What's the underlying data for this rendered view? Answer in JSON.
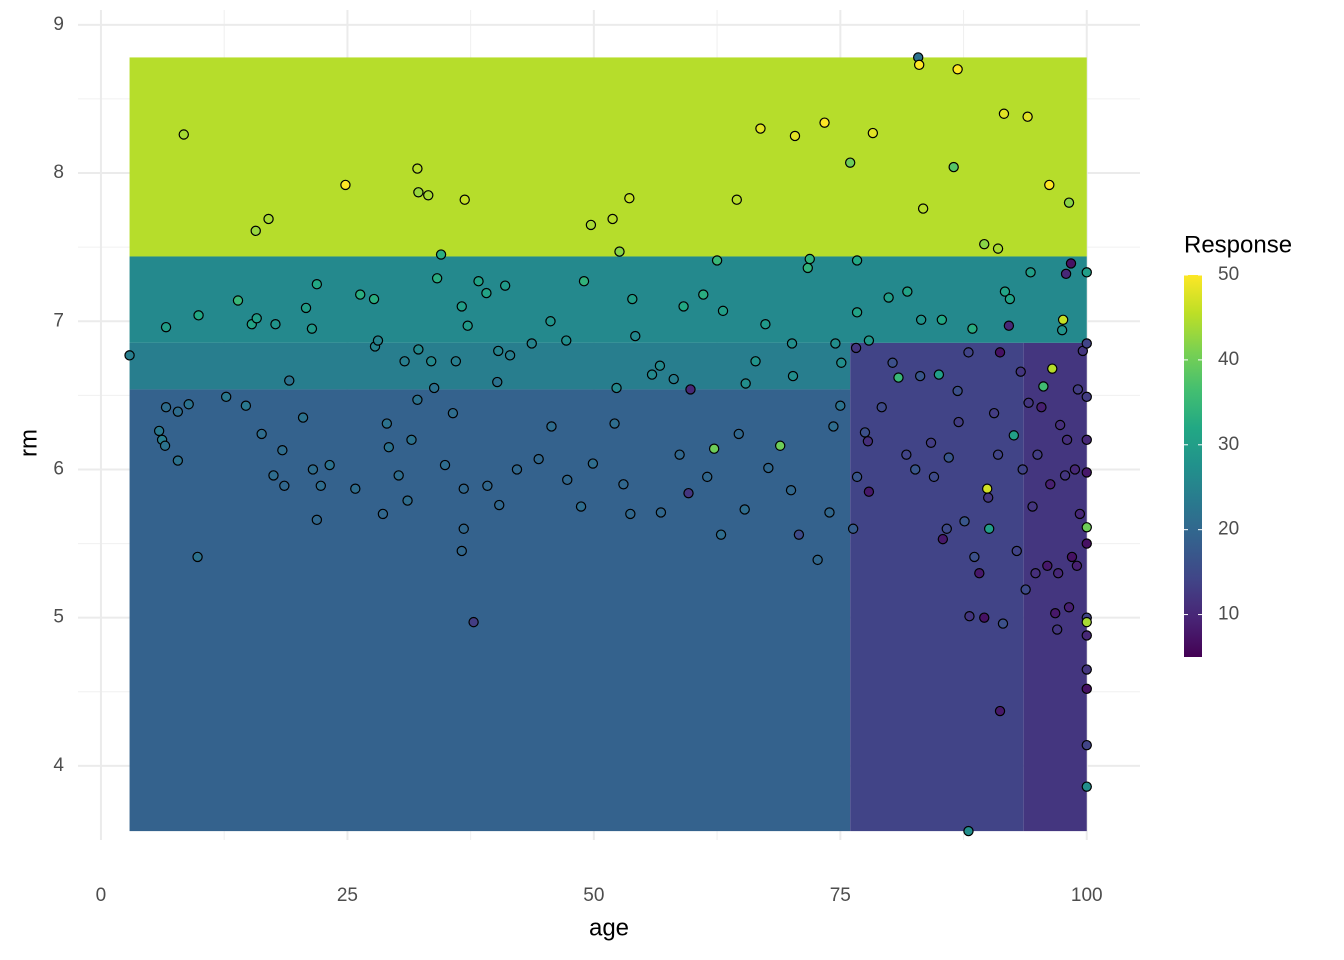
{
  "chart_data": {
    "type": "scatter",
    "x_label": "age",
    "y_label": "rm",
    "legend_title": "Response",
    "xlim": [
      -2.33,
      105.4
    ],
    "ylim": [
      3.5,
      9.1
    ],
    "xticks": [
      0,
      25,
      50,
      75,
      100
    ],
    "yticks": [
      4,
      5,
      6,
      7,
      8,
      9
    ],
    "grid": true,
    "colormap": "viridis",
    "clim": [
      5,
      50
    ],
    "cticks": [
      10,
      20,
      30,
      40,
      50
    ],
    "regions": [
      {
        "xlim": [
          2.9,
          100
        ],
        "ylim": [
          7.437,
          8.78
        ],
        "value": 45
      },
      {
        "xlim": [
          2.9,
          100
        ],
        "ylim": [
          6.854,
          7.437
        ],
        "value": 26
      },
      {
        "xlim": [
          2.9,
          76
        ],
        "ylim": [
          6.54,
          6.854
        ],
        "value": 24
      },
      {
        "xlim": [
          2.9,
          76
        ],
        "ylim": [
          3.56,
          6.54
        ],
        "value": 19
      },
      {
        "xlim": [
          76,
          93.6
        ],
        "ylim": [
          3.56,
          6.854
        ],
        "value": 14
      },
      {
        "xlim": [
          93.6,
          100
        ],
        "ylim": [
          3.56,
          6.854
        ],
        "value": 12
      }
    ],
    "x": [
      8.4,
      24.8,
      32.1,
      32.2,
      33.2,
      36.9,
      15.7,
      17,
      49.7,
      52.6,
      51.9,
      53.6,
      64.5,
      66.9,
      70.4,
      73.4,
      76,
      78.3,
      82.9,
      83,
      86.9,
      83.4,
      86.5,
      91.6,
      94,
      96.2,
      98.2,
      89.6,
      91,
      6.6,
      9.9,
      13.9,
      15.3,
      15.8,
      17.7,
      21.9,
      20.8,
      21.4,
      26.3,
      27.7,
      34.1,
      34.5,
      36.6,
      37.2,
      38.3,
      39.1,
      41,
      45.6,
      49,
      53.9,
      54.2,
      59.1,
      61.1,
      62.5,
      63.1,
      67.4,
      71.7,
      71.9,
      76.7,
      76.7,
      77.9,
      79.9,
      81.8,
      83.2,
      85.3,
      88.4,
      91.7,
      92.2,
      94.3,
      98.4,
      97.9,
      100,
      97.6,
      97.5,
      2.9,
      27.8,
      28.1,
      30.8,
      32.2,
      33.5,
      36,
      40.3,
      41.5,
      43.7,
      47.2,
      52.3,
      55.9,
      56.7,
      58.1,
      65.4,
      66.4,
      70.1,
      70.2,
      74.5,
      75.1,
      5.9,
      6.2,
      6.5,
      6.6,
      7.8,
      7.8,
      8.9,
      9.8,
      12.7,
      14.7,
      16.3,
      17.5,
      18.4,
      18.6,
      19.1,
      20.5,
      21.5,
      21.9,
      22.3,
      23.2,
      25.8,
      28.6,
      29,
      29.2,
      30.2,
      31.1,
      31.5,
      32.1,
      33.8,
      34.9,
      35.7,
      36.8,
      36.8,
      36.6,
      37.8,
      39.2,
      40.2,
      40.4,
      42.2,
      44.4,
      45.7,
      47.3,
      48.7,
      49.9,
      52.1,
      53,
      53.7,
      56.8,
      58.7,
      59.6,
      59.8,
      61.5,
      62.2,
      62.9,
      64.7,
      65.3,
      67.7,
      68.9,
      70,
      70.8,
      72.7,
      73.9,
      74.3,
      75,
      76.6,
      76.3,
      76.7,
      77.5,
      77.8,
      77.9,
      79.2,
      80.3,
      80.9,
      81.7,
      83.1,
      84.2,
      85,
      85.4,
      85.8,
      86.9,
      87.6,
      88,
      88.1,
      88,
      88.6,
      89.1,
      89.6,
      89.9,
      90.1,
      90.6,
      91.2,
      91.2,
      91.5,
      92.1,
      92.6,
      92.9,
      93.3,
      93.8,
      94.1,
      94.8,
      95.4,
      95.6,
      96,
      96.5,
      96.8,
      97.1,
      97.3,
      97.8,
      98.2,
      98.5,
      98.8,
      99.1,
      99.3,
      99.6,
      100,
      100,
      100,
      100,
      100,
      100,
      100,
      100,
      100,
      100,
      100,
      100,
      100,
      95,
      96.3,
      94.5,
      98,
      93.5,
      86,
      87,
      84.5,
      82.6,
      91,
      99,
      97,
      90
    ],
    "values": [
      8.26,
      7.92,
      8.03,
      7.87,
      7.85,
      7.82,
      7.61,
      7.69,
      7.65,
      7.47,
      7.69,
      7.83,
      7.82,
      8.3,
      8.25,
      8.34,
      8.07,
      8.27,
      8.78,
      8.73,
      8.7,
      7.76,
      8.04,
      8.4,
      8.38,
      7.92,
      7.8,
      7.52,
      7.49,
      6.96,
      7.04,
      7.14,
      6.98,
      7.02,
      6.98,
      7.25,
      7.09,
      6.95,
      7.18,
      7.15,
      7.29,
      7.45,
      7.1,
      6.97,
      7.27,
      7.19,
      7.24,
      7.0,
      7.27,
      7.15,
      6.9,
      7.1,
      7.18,
      7.41,
      7.07,
      6.98,
      7.36,
      7.42,
      7.41,
      7.06,
      6.87,
      7.16,
      7.2,
      7.01,
      7.01,
      6.95,
      7.2,
      7.15,
      7.33,
      7.39,
      7.32,
      7.33,
      7.01,
      6.94,
      6.77,
      6.83,
      6.87,
      6.73,
      6.81,
      6.73,
      6.73,
      6.8,
      6.77,
      6.85,
      6.87,
      6.55,
      6.64,
      6.7,
      6.61,
      6.58,
      6.73,
      6.85,
      6.63,
      6.85,
      6.72,
      6.26,
      6.2,
      6.16,
      6.42,
      6.06,
      6.39,
      6.44,
      5.41,
      6.49,
      6.43,
      6.24,
      5.96,
      6.13,
      5.89,
      6.6,
      6.35,
      6.0,
      5.66,
      5.89,
      6.03,
      5.87,
      5.7,
      6.31,
      6.15,
      5.96,
      5.79,
      6.2,
      6.47,
      6.55,
      6.03,
      6.38,
      5.87,
      5.6,
      5.45,
      4.97,
      5.89,
      6.59,
      5.76,
      6.0,
      6.07,
      6.29,
      5.93,
      5.75,
      6.04,
      6.31,
      5.9,
      5.7,
      5.71,
      6.1,
      5.84,
      6.54,
      5.95,
      6.14,
      5.56,
      6.24,
      5.73,
      6.01,
      6.16,
      5.86,
      5.56,
      5.39,
      5.71,
      6.29,
      6.43,
      6.82,
      5.6,
      5.95,
      6.25,
      6.19,
      5.85,
      6.42,
      6.72,
      6.62,
      6.1,
      6.63,
      6.18,
      6.64,
      5.53,
      5.6,
      6.53,
      5.65,
      6.79,
      5.01,
      3.56,
      5.41,
      5.3,
      5.0,
      5.87,
      5.6,
      6.38,
      6.79,
      4.37,
      4.96,
      6.97,
      6.23,
      5.45,
      6.66,
      5.19,
      6.45,
      5.3,
      6.42,
      6.56,
      5.35,
      6.68,
      5.03,
      5.3,
      6.3,
      5.96,
      5.07,
      5.41,
      6.0,
      6.54,
      5.7,
      6.8,
      6.85,
      6.49,
      6.2,
      5.98,
      5.61,
      5.5,
      5.0,
      4.97,
      4.88,
      4.65,
      4.52,
      4.14,
      3.86,
      6.1,
      5.9,
      5.75,
      6.2,
      6.0,
      6.08,
      6.32,
      5.95,
      6.0,
      6.1,
      5.35,
      4.92,
      5.81
    ],
    "color_values": [
      44,
      50,
      45,
      43,
      44,
      46,
      43,
      44,
      44,
      42,
      45,
      46,
      45,
      48,
      48,
      50,
      40,
      48,
      22,
      50,
      50,
      45,
      38,
      48,
      48,
      50,
      42,
      42,
      44,
      30,
      32,
      35,
      31,
      30,
      28,
      32,
      30,
      29,
      33,
      33,
      33,
      33,
      30,
      29,
      31,
      31,
      29,
      28,
      34,
      30,
      26,
      32,
      33,
      35,
      30,
      29,
      34,
      34,
      32,
      31,
      29,
      30,
      31,
      28,
      32,
      33,
      31,
      31,
      30,
      7,
      10,
      30,
      46,
      28,
      24,
      25,
      25,
      24,
      26,
      26,
      24,
      25,
      24,
      25,
      27,
      26,
      26,
      26,
      24,
      27,
      28,
      27,
      27,
      27,
      27,
      23,
      24,
      22,
      21,
      22,
      21,
      22,
      22,
      23,
      23,
      21,
      21,
      21,
      20,
      22,
      22,
      21,
      20,
      21,
      22,
      21,
      20,
      22,
      22,
      21,
      21,
      22,
      22,
      22,
      21,
      21,
      20,
      20,
      20,
      13,
      20,
      22,
      20,
      20,
      20,
      21,
      20,
      21,
      21,
      21,
      20,
      20,
      20,
      20,
      12,
      10,
      20,
      40,
      21,
      20,
      21,
      20,
      40,
      20,
      15,
      20,
      20,
      21,
      22,
      12,
      18,
      17,
      16,
      11,
      8,
      15,
      16,
      35,
      14,
      17,
      13,
      30,
      8,
      15,
      16,
      17,
      14,
      12,
      27,
      16,
      8,
      7,
      47,
      30,
      13,
      7,
      8,
      16,
      10,
      30,
      14,
      12,
      15,
      12,
      11,
      9,
      36,
      8,
      45,
      8,
      10,
      11,
      12,
      9,
      7,
      10,
      13,
      10,
      12,
      14,
      13,
      10,
      8,
      40,
      7,
      14,
      44,
      10,
      12,
      7,
      14,
      27,
      13,
      9,
      12,
      11,
      14,
      17,
      13,
      15,
      17,
      14,
      9,
      12,
      12
    ]
  }
}
